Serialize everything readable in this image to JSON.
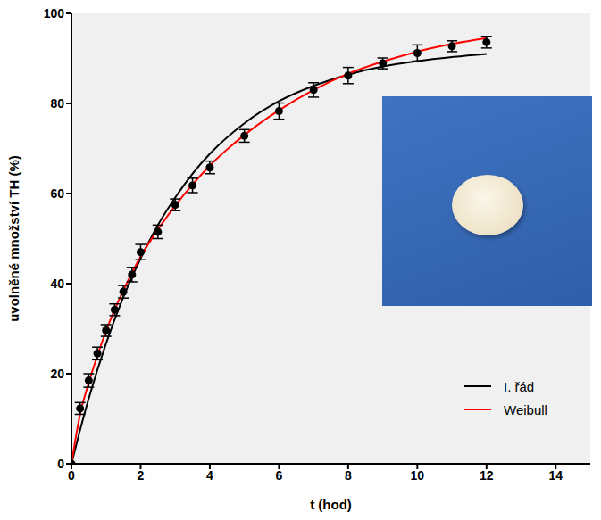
{
  "chart_data": {
    "type": "line",
    "x_label": "t (hod)",
    "y_label": "uvolněné množství TH (%)",
    "xlim": [
      0,
      15
    ],
    "xticks": [
      0,
      2,
      4,
      6,
      8,
      10,
      12,
      14
    ],
    "ylim": [
      0,
      100
    ],
    "yticks": [
      0,
      20,
      40,
      60,
      80,
      100
    ],
    "legend": "lower right",
    "series": [
      {
        "type": "scatter",
        "color": "#000000",
        "marker": "circle",
        "x": [
          0,
          0.25,
          0.5,
          0.75,
          1,
          1.25,
          1.5,
          1.75,
          2,
          2.5,
          3,
          3.5,
          4,
          5,
          6,
          7,
          8,
          9,
          10,
          11,
          12
        ],
        "values": [
          0,
          12.3,
          18.5,
          24.5,
          29.6,
          34.2,
          38.2,
          42,
          47,
          51.5,
          57.5,
          61.8,
          65.8,
          72.8,
          78.3,
          83,
          86.2,
          88.9,
          91.2,
          92.7,
          93.6
        ],
        "errors": [
          0,
          1.3,
          1.5,
          1.4,
          1.3,
          1.3,
          1.4,
          1.6,
          1.7,
          1.5,
          1.3,
          1.6,
          1.4,
          1.4,
          1.8,
          1.6,
          1.8,
          1.2,
          1.8,
          1.2,
          1.3
        ]
      },
      {
        "name": "I. řád",
        "type": "line",
        "color": "#000000",
        "x": [
          0,
          0.25,
          0.5,
          1,
          1.5,
          2,
          2.5,
          3,
          3.5,
          4,
          5,
          6,
          7,
          8,
          9,
          10,
          11,
          12
        ],
        "values": [
          0,
          7.5,
          14.5,
          26.7,
          37,
          45.6,
          53,
          59.1,
          64.4,
          68.8,
          75.6,
          80.5,
          83.9,
          86.4,
          88.2,
          89.4,
          90.3,
          91
        ]
      },
      {
        "name": "Weibull",
        "type": "line",
        "color": "#ff0000",
        "x": [
          0,
          0.25,
          0.5,
          0.75,
          1,
          1.5,
          2,
          2.5,
          3,
          3.5,
          4,
          5,
          6,
          7,
          8,
          9,
          10,
          11,
          12
        ],
        "values": [
          0,
          11,
          18,
          24,
          29.5,
          38.5,
          46,
          52,
          57.3,
          62,
          66.2,
          73,
          78.5,
          83,
          86.6,
          89.3,
          91.5,
          93.2,
          94.5
        ]
      }
    ]
  }
}
